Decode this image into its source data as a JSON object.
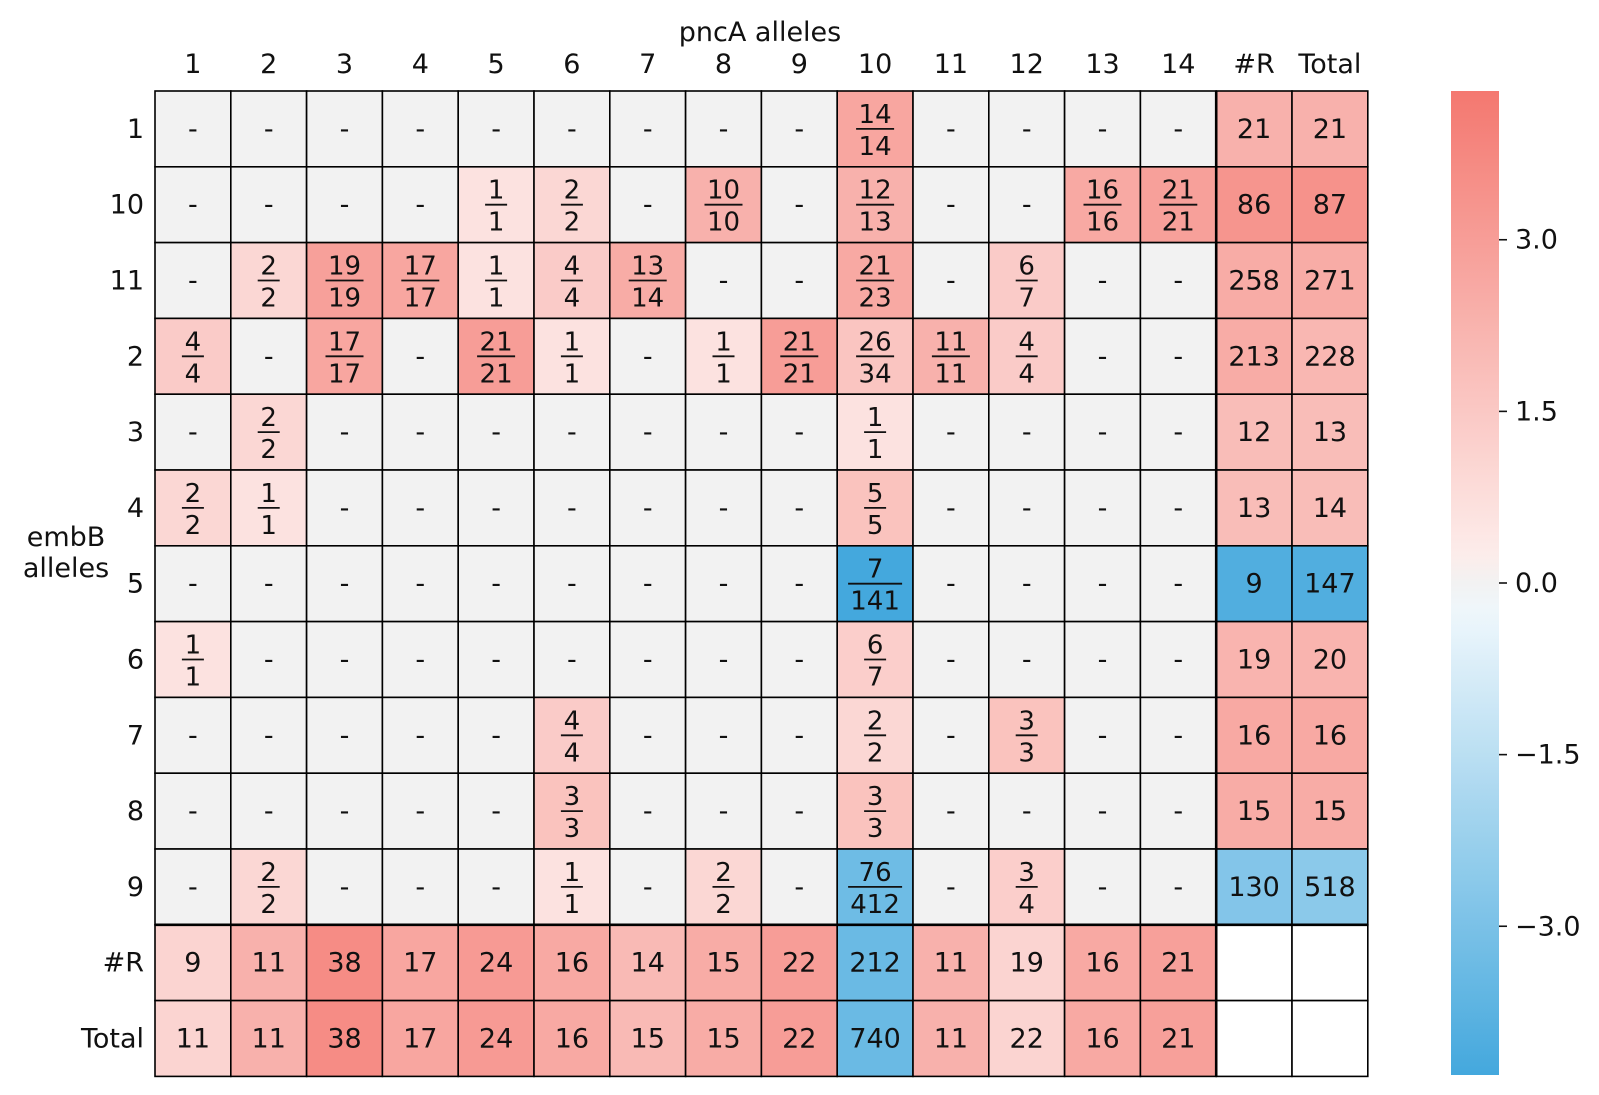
{
  "chart_data": {
    "type": "heatmap",
    "xlabel": "pncA alleles",
    "ylabel_lines": [
      "embB",
      "alleles"
    ],
    "col_labels": [
      "1",
      "2",
      "3",
      "4",
      "5",
      "6",
      "7",
      "8",
      "9",
      "10",
      "11",
      "12",
      "13",
      "14",
      "#R",
      "Total"
    ],
    "row_labels": [
      "1",
      "10",
      "11",
      "2",
      "3",
      "4",
      "5",
      "6",
      "7",
      "8",
      "9",
      "#R",
      "Total"
    ],
    "cells": [
      [
        "-",
        "-",
        "-",
        "-",
        "-",
        "-",
        "-",
        "-",
        "-",
        "14/14",
        "-",
        "-",
        "-",
        "-",
        "21",
        "21"
      ],
      [
        "-",
        "-",
        "-",
        "-",
        "1/1",
        "2/2",
        "-",
        "10/10",
        "-",
        "12/13",
        "-",
        "-",
        "16/16",
        "21/21",
        "86",
        "87"
      ],
      [
        "-",
        "2/2",
        "19/19",
        "17/17",
        "1/1",
        "4/4",
        "13/14",
        "-",
        "-",
        "21/23",
        "-",
        "6/7",
        "-",
        "-",
        "258",
        "271"
      ],
      [
        "4/4",
        "-",
        "17/17",
        "-",
        "21/21",
        "1/1",
        "-",
        "1/1",
        "21/21",
        "26/34",
        "11/11",
        "4/4",
        "-",
        "-",
        "213",
        "228"
      ],
      [
        "-",
        "2/2",
        "-",
        "-",
        "-",
        "-",
        "-",
        "-",
        "-",
        "1/1",
        "-",
        "-",
        "-",
        "-",
        "12",
        "13"
      ],
      [
        "2/2",
        "1/1",
        "-",
        "-",
        "-",
        "-",
        "-",
        "-",
        "-",
        "5/5",
        "-",
        "-",
        "-",
        "-",
        "13",
        "14"
      ],
      [
        "-",
        "-",
        "-",
        "-",
        "-",
        "-",
        "-",
        "-",
        "-",
        "7/141",
        "-",
        "-",
        "-",
        "-",
        "9",
        "147"
      ],
      [
        "1/1",
        "-",
        "-",
        "-",
        "-",
        "-",
        "-",
        "-",
        "-",
        "6/7",
        "-",
        "-",
        "-",
        "-",
        "19",
        "20"
      ],
      [
        "-",
        "-",
        "-",
        "-",
        "-",
        "4/4",
        "-",
        "-",
        "-",
        "2/2",
        "-",
        "3/3",
        "-",
        "-",
        "16",
        "16"
      ],
      [
        "-",
        "-",
        "-",
        "-",
        "-",
        "3/3",
        "-",
        "-",
        "-",
        "3/3",
        "-",
        "-",
        "-",
        "-",
        "15",
        "15"
      ],
      [
        "-",
        "2/2",
        "-",
        "-",
        "-",
        "1/1",
        "-",
        "2/2",
        "-",
        "76/412",
        "-",
        "3/4",
        "-",
        "-",
        "130",
        "518"
      ],
      [
        "9",
        "11",
        "38",
        "17",
        "24",
        "16",
        "14",
        "15",
        "22",
        "212",
        "11",
        "19",
        "16",
        "21",
        "",
        ""
      ],
      [
        "11",
        "11",
        "38",
        "17",
        "24",
        "16",
        "15",
        "15",
        "22",
        "740",
        "11",
        "22",
        "16",
        "21",
        "",
        ""
      ]
    ],
    "values": [
      [
        null,
        null,
        null,
        null,
        null,
        null,
        null,
        null,
        null,
        2.7,
        null,
        null,
        null,
        null,
        2.3,
        2.3
      ],
      [
        null,
        null,
        null,
        null,
        0.6,
        1.0,
        null,
        2.3,
        null,
        2.3,
        null,
        null,
        2.6,
        2.9,
        3.3,
        3.4
      ],
      [
        null,
        1.0,
        2.9,
        2.7,
        0.6,
        1.4,
        2.5,
        null,
        null,
        2.6,
        null,
        1.4,
        null,
        null,
        2.5,
        2.5
      ],
      [
        1.4,
        null,
        2.7,
        null,
        3.0,
        0.6,
        null,
        0.6,
        3.0,
        1.6,
        2.3,
        1.4,
        null,
        null,
        2.5,
        2.1
      ],
      [
        null,
        1.0,
        null,
        null,
        null,
        null,
        null,
        null,
        null,
        0.6,
        null,
        null,
        null,
        null,
        1.9,
        1.9
      ],
      [
        1.0,
        0.6,
        null,
        null,
        null,
        null,
        null,
        null,
        null,
        1.7,
        null,
        null,
        null,
        null,
        1.9,
        1.9
      ],
      [
        null,
        null,
        null,
        null,
        null,
        null,
        null,
        null,
        null,
        -4.3,
        null,
        null,
        null,
        null,
        -4.0,
        -4.0
      ],
      [
        0.6,
        null,
        null,
        null,
        null,
        null,
        null,
        null,
        null,
        1.3,
        null,
        null,
        null,
        null,
        2.2,
        2.2
      ],
      [
        null,
        null,
        null,
        null,
        null,
        1.4,
        null,
        null,
        null,
        1.0,
        null,
        1.7,
        null,
        null,
        2.6,
        2.6
      ],
      [
        null,
        null,
        null,
        null,
        null,
        1.7,
        null,
        null,
        null,
        1.7,
        null,
        null,
        null,
        null,
        2.5,
        2.5
      ],
      [
        null,
        1.0,
        null,
        null,
        null,
        0.6,
        null,
        1.0,
        null,
        -3.3,
        null,
        1.3,
        null,
        null,
        -2.8,
        -2.6
      ],
      [
        1.1,
        2.3,
        3.6,
        2.7,
        3.1,
        2.6,
        2.0,
        2.5,
        3.0,
        -3.4,
        2.3,
        1.1,
        2.6,
        2.9,
        null,
        null
      ],
      [
        1.1,
        2.3,
        3.6,
        2.7,
        3.1,
        2.6,
        2.0,
        2.5,
        3.0,
        -3.4,
        2.3,
        1.1,
        2.6,
        2.9,
        null,
        null
      ]
    ],
    "colorbar": {
      "min": -4.3,
      "max": 4.3,
      "ticks": [
        3.0,
        1.5,
        0.0,
        -1.5,
        -3.0
      ],
      "tick_labels": [
        "3.0",
        "1.5",
        "0.0",
        "−1.5",
        "−3.0"
      ],
      "positive_color": "#f47870",
      "negative_color": "#44a8dd",
      "neutral_color": "#f2f2f2"
    }
  }
}
